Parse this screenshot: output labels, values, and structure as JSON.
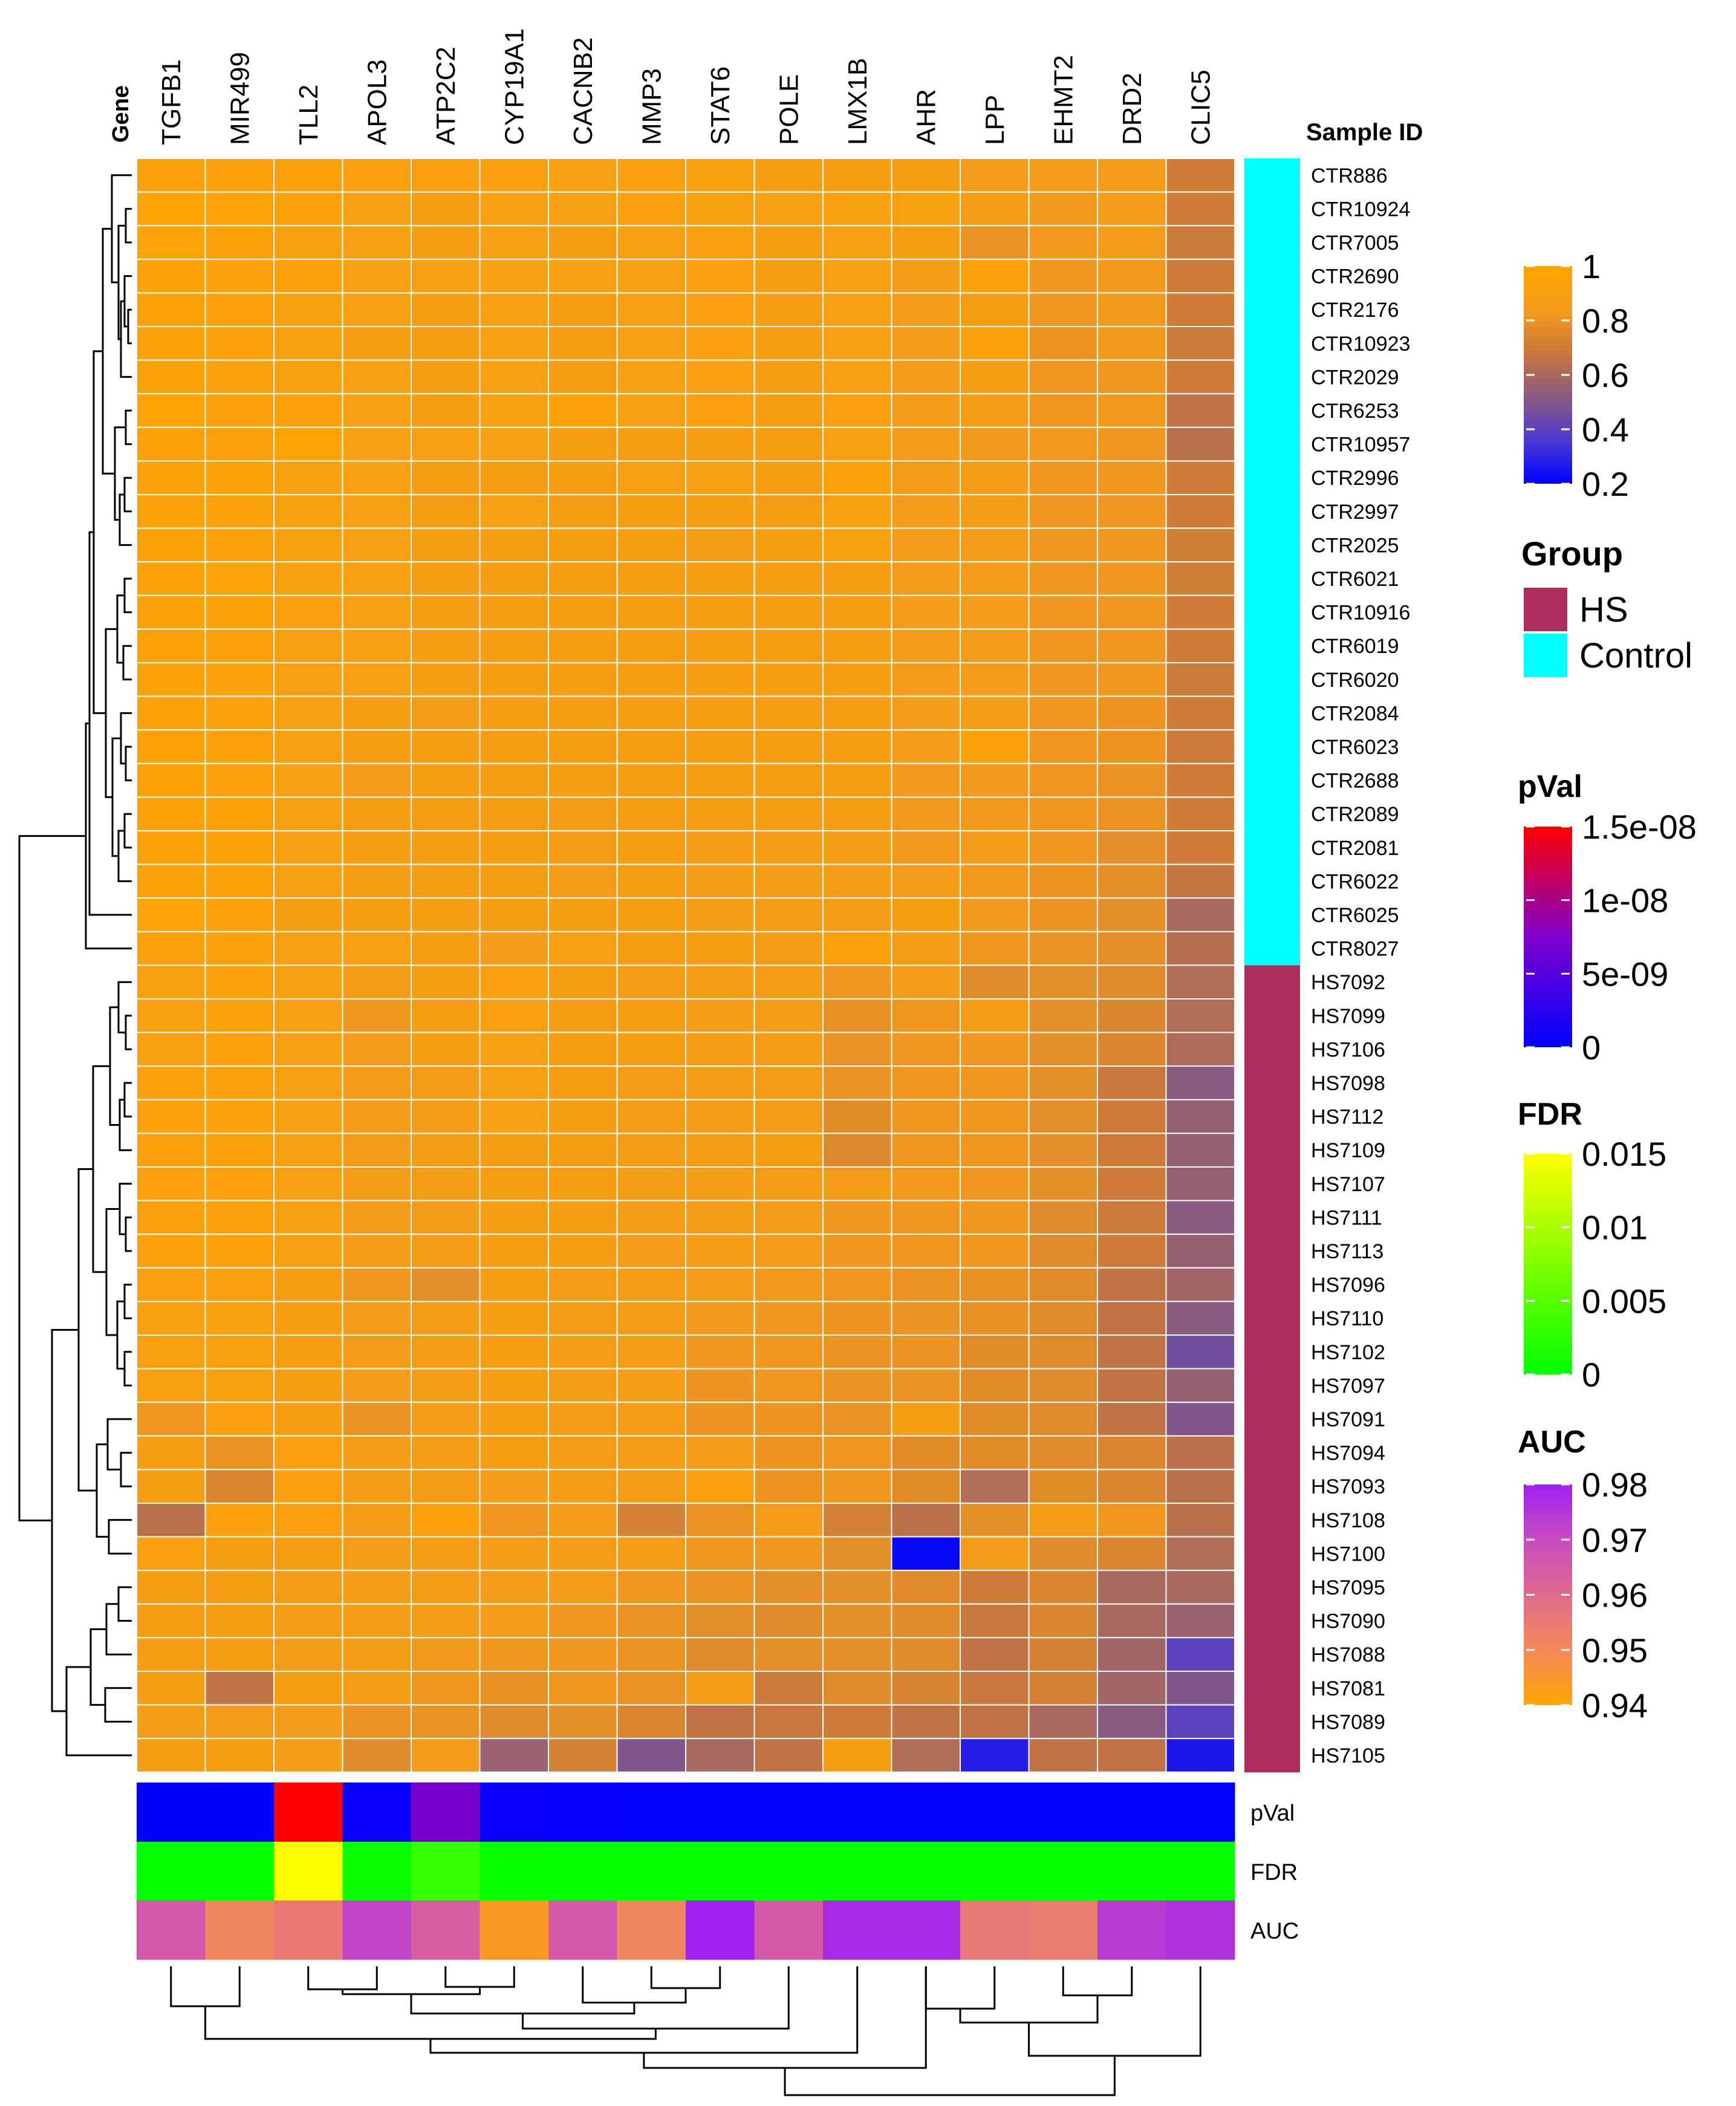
{
  "chart_data": {
    "type": "heatmap",
    "title": "",
    "column_header": "Gene",
    "row_header": "Sample ID",
    "genes": [
      "TGFB1",
      "MIR499",
      "TLL2",
      "APOL3",
      "ATP2C2",
      "CYP19A1",
      "CACNB2",
      "MMP3",
      "STAT6",
      "POLE",
      "LMX1B",
      "AHR",
      "LPP",
      "EHMT2",
      "DRD2",
      "CLIC5"
    ],
    "samples": [
      "CTR886",
      "CTR10924",
      "CTR7005",
      "CTR2690",
      "CTR2176",
      "CTR10923",
      "CTR2029",
      "CTR6253",
      "CTR10957",
      "CTR2996",
      "CTR2997",
      "CTR2025",
      "CTR6021",
      "CTR10916",
      "CTR6019",
      "CTR6020",
      "CTR2084",
      "CTR6023",
      "CTR2688",
      "CTR2089",
      "CTR2081",
      "CTR6022",
      "CTR6025",
      "CTR8027",
      "HS7092",
      "HS7099",
      "HS7106",
      "HS7098",
      "HS7112",
      "HS7109",
      "HS7107",
      "HS7111",
      "HS7113",
      "HS7096",
      "HS7110",
      "HS7102",
      "HS7097",
      "HS7091",
      "HS7094",
      "HS7093",
      "HS7108",
      "HS7100",
      "HS7095",
      "HS7090",
      "HS7088",
      "HS7081",
      "HS7089",
      "HS7105"
    ],
    "groups": [
      "Control",
      "Control",
      "Control",
      "Control",
      "Control",
      "Control",
      "Control",
      "Control",
      "Control",
      "Control",
      "Control",
      "Control",
      "Control",
      "Control",
      "Control",
      "Control",
      "Control",
      "Control",
      "Control",
      "Control",
      "Control",
      "Control",
      "Control",
      "Control",
      "HS",
      "HS",
      "HS",
      "HS",
      "HS",
      "HS",
      "HS",
      "HS",
      "HS",
      "HS",
      "HS",
      "HS",
      "HS",
      "HS",
      "HS",
      "HS",
      "HS",
      "HS",
      "HS",
      "HS",
      "HS",
      "HS",
      "HS",
      "HS"
    ],
    "values": [
      [
        0.93,
        0.92,
        0.92,
        0.9,
        0.9,
        0.9,
        0.89,
        0.9,
        0.91,
        0.88,
        0.88,
        0.88,
        0.84,
        0.84,
        0.84,
        0.7
      ],
      [
        0.97,
        0.96,
        0.92,
        0.89,
        0.88,
        0.89,
        0.89,
        0.9,
        0.91,
        0.89,
        0.91,
        0.91,
        0.86,
        0.83,
        0.84,
        0.7
      ],
      [
        0.96,
        0.95,
        0.91,
        0.89,
        0.88,
        0.89,
        0.88,
        0.89,
        0.9,
        0.88,
        0.89,
        0.87,
        0.8,
        0.83,
        0.84,
        0.69
      ],
      [
        0.95,
        0.94,
        0.92,
        0.89,
        0.89,
        0.89,
        0.89,
        0.89,
        0.9,
        0.88,
        0.89,
        0.85,
        0.94,
        0.82,
        0.83,
        0.7
      ],
      [
        0.95,
        0.93,
        0.91,
        0.89,
        0.88,
        0.89,
        0.88,
        0.89,
        0.9,
        0.88,
        0.89,
        0.84,
        0.88,
        0.82,
        0.83,
        0.7
      ],
      [
        0.95,
        0.93,
        0.91,
        0.88,
        0.88,
        0.89,
        0.88,
        0.89,
        0.9,
        0.88,
        0.89,
        0.84,
        0.92,
        0.81,
        0.83,
        0.69
      ],
      [
        0.95,
        0.93,
        0.91,
        0.89,
        0.88,
        0.89,
        0.88,
        0.89,
        0.9,
        0.88,
        0.89,
        0.84,
        0.88,
        0.82,
        0.82,
        0.7
      ],
      [
        0.97,
        0.94,
        0.92,
        0.89,
        0.88,
        0.91,
        0.94,
        0.89,
        0.9,
        0.88,
        0.9,
        0.84,
        0.86,
        0.82,
        0.83,
        0.66
      ],
      [
        0.95,
        0.93,
        0.98,
        0.89,
        0.89,
        0.89,
        0.88,
        0.88,
        0.88,
        0.88,
        0.89,
        0.84,
        0.83,
        0.83,
        0.82,
        0.64
      ],
      [
        0.95,
        0.95,
        0.91,
        0.89,
        0.88,
        0.88,
        0.88,
        0.89,
        0.89,
        0.88,
        0.93,
        0.84,
        0.86,
        0.82,
        0.82,
        0.7
      ],
      [
        0.95,
        0.94,
        0.91,
        0.89,
        0.88,
        0.89,
        0.88,
        0.88,
        0.87,
        0.87,
        0.91,
        0.84,
        0.86,
        0.82,
        0.82,
        0.7
      ],
      [
        0.95,
        0.94,
        0.91,
        0.89,
        0.88,
        0.88,
        0.87,
        0.87,
        0.85,
        0.87,
        0.91,
        0.84,
        0.84,
        0.82,
        0.82,
        0.71
      ],
      [
        0.95,
        0.96,
        0.91,
        0.89,
        0.88,
        0.88,
        0.87,
        0.88,
        0.88,
        0.87,
        0.87,
        0.84,
        0.84,
        0.82,
        0.82,
        0.71
      ],
      [
        0.95,
        0.95,
        0.9,
        0.89,
        0.88,
        0.88,
        0.87,
        0.88,
        0.87,
        0.87,
        0.87,
        0.84,
        0.84,
        0.82,
        0.82,
        0.7
      ],
      [
        0.95,
        0.94,
        0.89,
        0.89,
        0.88,
        0.88,
        0.87,
        0.88,
        0.87,
        0.87,
        0.87,
        0.84,
        0.84,
        0.82,
        0.82,
        0.7
      ],
      [
        0.95,
        0.93,
        0.89,
        0.89,
        0.87,
        0.88,
        0.87,
        0.88,
        0.87,
        0.87,
        0.87,
        0.84,
        0.84,
        0.82,
        0.82,
        0.69
      ],
      [
        0.95,
        0.93,
        0.89,
        0.88,
        0.86,
        0.88,
        0.87,
        0.88,
        0.87,
        0.87,
        0.87,
        0.84,
        0.85,
        0.82,
        0.81,
        0.7
      ],
      [
        0.95,
        0.94,
        0.89,
        0.88,
        0.87,
        0.88,
        0.87,
        0.88,
        0.87,
        0.87,
        0.87,
        0.84,
        0.93,
        0.82,
        0.81,
        0.69
      ],
      [
        0.95,
        0.94,
        0.89,
        0.84,
        0.87,
        0.88,
        0.87,
        0.87,
        0.87,
        0.87,
        0.87,
        0.83,
        0.83,
        0.82,
        0.8,
        0.7
      ],
      [
        0.95,
        0.95,
        0.89,
        0.88,
        0.87,
        0.88,
        0.86,
        0.87,
        0.87,
        0.87,
        0.87,
        0.83,
        0.83,
        0.82,
        0.8,
        0.7
      ],
      [
        0.95,
        0.95,
        0.89,
        0.88,
        0.87,
        0.88,
        0.86,
        0.87,
        0.86,
        0.86,
        0.86,
        0.83,
        0.84,
        0.82,
        0.78,
        0.7
      ],
      [
        0.95,
        0.95,
        0.89,
        0.88,
        0.87,
        0.88,
        0.86,
        0.87,
        0.86,
        0.86,
        0.86,
        0.84,
        0.83,
        0.81,
        0.78,
        0.67
      ],
      [
        0.96,
        0.93,
        0.88,
        0.88,
        0.87,
        0.88,
        0.87,
        0.87,
        0.86,
        0.86,
        0.86,
        0.88,
        0.83,
        0.81,
        0.78,
        0.6
      ],
      [
        0.92,
        0.92,
        0.89,
        0.89,
        0.88,
        0.84,
        0.89,
        0.88,
        0.87,
        0.85,
        0.94,
        0.86,
        0.82,
        0.8,
        0.78,
        0.63
      ],
      [
        0.91,
        0.92,
        0.89,
        0.85,
        0.88,
        0.9,
        0.88,
        0.86,
        0.86,
        0.86,
        0.82,
        0.84,
        0.76,
        0.78,
        0.76,
        0.62
      ],
      [
        0.91,
        0.92,
        0.89,
        0.82,
        0.87,
        0.9,
        0.88,
        0.87,
        0.86,
        0.86,
        0.79,
        0.82,
        0.86,
        0.78,
        0.74,
        0.62
      ],
      [
        0.91,
        0.92,
        0.89,
        0.84,
        0.87,
        0.89,
        0.88,
        0.87,
        0.86,
        0.86,
        0.8,
        0.82,
        0.82,
        0.78,
        0.74,
        0.61
      ],
      [
        0.92,
        0.93,
        0.89,
        0.84,
        0.86,
        0.89,
        0.87,
        0.86,
        0.86,
        0.86,
        0.8,
        0.82,
        0.82,
        0.78,
        0.68,
        0.52
      ],
      [
        0.92,
        0.94,
        0.89,
        0.84,
        0.86,
        0.89,
        0.87,
        0.86,
        0.86,
        0.86,
        0.77,
        0.82,
        0.82,
        0.78,
        0.7,
        0.55
      ],
      [
        0.92,
        0.93,
        0.89,
        0.84,
        0.86,
        0.88,
        0.87,
        0.86,
        0.86,
        0.88,
        0.75,
        0.82,
        0.82,
        0.78,
        0.7,
        0.55
      ],
      [
        0.92,
        0.94,
        0.89,
        0.86,
        0.86,
        0.88,
        0.87,
        0.86,
        0.86,
        0.86,
        0.84,
        0.83,
        0.82,
        0.78,
        0.7,
        0.55
      ],
      [
        0.92,
        0.94,
        0.89,
        0.84,
        0.86,
        0.87,
        0.87,
        0.86,
        0.85,
        0.84,
        0.82,
        0.82,
        0.82,
        0.76,
        0.69,
        0.52
      ],
      [
        0.92,
        0.93,
        0.89,
        0.86,
        0.86,
        0.87,
        0.87,
        0.84,
        0.85,
        0.84,
        0.82,
        0.82,
        0.82,
        0.76,
        0.7,
        0.55
      ],
      [
        0.9,
        0.9,
        0.87,
        0.82,
        0.78,
        0.88,
        0.86,
        0.85,
        0.84,
        0.83,
        0.82,
        0.8,
        0.79,
        0.76,
        0.66,
        0.58
      ],
      [
        0.91,
        0.91,
        0.88,
        0.84,
        0.86,
        0.88,
        0.86,
        0.85,
        0.83,
        0.82,
        0.81,
        0.8,
        0.79,
        0.76,
        0.66,
        0.52
      ],
      [
        0.91,
        0.91,
        0.88,
        0.84,
        0.86,
        0.88,
        0.86,
        0.85,
        0.82,
        0.82,
        0.8,
        0.8,
        0.77,
        0.76,
        0.66,
        0.46
      ],
      [
        0.91,
        0.91,
        0.88,
        0.84,
        0.86,
        0.88,
        0.86,
        0.85,
        0.81,
        0.82,
        0.8,
        0.8,
        0.77,
        0.76,
        0.66,
        0.55
      ],
      [
        0.82,
        0.9,
        0.88,
        0.8,
        0.86,
        0.88,
        0.86,
        0.85,
        0.81,
        0.81,
        0.8,
        0.88,
        0.77,
        0.76,
        0.66,
        0.5
      ],
      [
        0.87,
        0.8,
        0.9,
        0.86,
        0.86,
        0.88,
        0.86,
        0.85,
        0.84,
        0.81,
        0.82,
        0.77,
        0.77,
        0.76,
        0.74,
        0.64
      ],
      [
        0.88,
        0.74,
        0.9,
        0.86,
        0.86,
        0.84,
        0.86,
        0.85,
        0.9,
        0.81,
        0.82,
        0.77,
        0.62,
        0.77,
        0.74,
        0.64
      ],
      [
        0.64,
        0.94,
        0.9,
        0.86,
        0.93,
        0.82,
        0.84,
        0.72,
        0.8,
        0.84,
        0.72,
        0.65,
        0.78,
        0.86,
        0.82,
        0.64
      ],
      [
        0.9,
        0.88,
        0.88,
        0.86,
        0.86,
        0.86,
        0.86,
        0.85,
        0.82,
        0.82,
        0.78,
        0.22,
        0.84,
        0.76,
        0.74,
        0.62
      ],
      [
        0.88,
        0.88,
        0.85,
        0.85,
        0.86,
        0.84,
        0.84,
        0.82,
        0.8,
        0.78,
        0.78,
        0.76,
        0.7,
        0.74,
        0.6,
        0.6
      ],
      [
        0.88,
        0.88,
        0.86,
        0.86,
        0.86,
        0.84,
        0.82,
        0.8,
        0.78,
        0.76,
        0.78,
        0.76,
        0.68,
        0.74,
        0.6,
        0.56
      ],
      [
        0.88,
        0.87,
        0.86,
        0.86,
        0.83,
        0.82,
        0.82,
        0.8,
        0.76,
        0.78,
        0.78,
        0.76,
        0.66,
        0.72,
        0.58,
        0.4
      ],
      [
        0.87,
        0.66,
        0.87,
        0.86,
        0.82,
        0.79,
        0.82,
        0.8,
        0.86,
        0.69,
        0.76,
        0.73,
        0.68,
        0.72,
        0.58,
        0.5
      ],
      [
        0.86,
        0.84,
        0.84,
        0.8,
        0.8,
        0.76,
        0.78,
        0.74,
        0.66,
        0.68,
        0.7,
        0.66,
        0.66,
        0.6,
        0.52,
        0.4
      ],
      [
        0.88,
        0.88,
        0.85,
        0.76,
        0.84,
        0.56,
        0.72,
        0.5,
        0.6,
        0.66,
        0.88,
        0.62,
        0.28,
        0.66,
        0.66,
        0.26
      ]
    ],
    "pval": [
      0,
      0,
      1.5e-08,
      5e-10,
      7e-09,
      5e-10,
      3e-10,
      2e-10,
      1e-10,
      1e-10,
      1e-10,
      1e-10,
      1e-10,
      1e-10,
      1e-10,
      1e-10
    ],
    "fdr": [
      0.0002,
      0.0002,
      0.015,
      0.0005,
      0.003,
      0.0002,
      0.0002,
      0.0002,
      0.0002,
      0.0002,
      0.0002,
      0.0002,
      0.0002,
      0.0002,
      0.0002,
      0.0002
    ],
    "auc": [
      0.966,
      0.951,
      0.955,
      0.972,
      0.964,
      0.944,
      0.966,
      0.951,
      0.98,
      0.965,
      0.978,
      0.978,
      0.956,
      0.954,
      0.974,
      0.976
    ],
    "annotation_rows": [
      "pVal",
      "FDR",
      "AUC"
    ],
    "legends": {
      "value": {
        "ticks": [
          "1",
          "0.8",
          "0.6",
          "0.4",
          "0.2"
        ],
        "range": [
          0.2,
          1
        ]
      },
      "group": {
        "title": "Group",
        "items": [
          {
            "label": "HS",
            "color": "#ad2f5d"
          },
          {
            "label": "Control",
            "color": "#00ffff"
          }
        ]
      },
      "pval": {
        "title": "pVal",
        "ticks": [
          "1.5e-08",
          "1e-08",
          "5e-09",
          "0"
        ],
        "range": [
          0,
          1.5e-08
        ]
      },
      "fdr": {
        "title": "FDR",
        "ticks": [
          "0.015",
          "0.01",
          "0.005",
          "0"
        ],
        "range": [
          0,
          0.015
        ]
      },
      "auc": {
        "title": "AUC",
        "ticks": [
          "0.98",
          "0.97",
          "0.96",
          "0.95",
          "0.94"
        ],
        "range": [
          0.94,
          0.98
        ]
      }
    },
    "colors": {
      "value_scale": [
        "#0000ff",
        "#4b3ad0",
        "#8a5a80",
        "#c8783c",
        "#f59c1a",
        "#ffa500"
      ],
      "pval_scale": [
        "#0000ff",
        "#8000cc",
        "#ff0000"
      ],
      "fdr_scale": [
        "#00ff00",
        "#80ff00",
        "#ffff00"
      ],
      "auc_scale": [
        "#ffa500",
        "#f38a5a",
        "#e06a8c",
        "#c84cc0",
        "#a020f0"
      ],
      "group_hs": "#ad2f5d",
      "group_control": "#00ffff"
    }
  }
}
